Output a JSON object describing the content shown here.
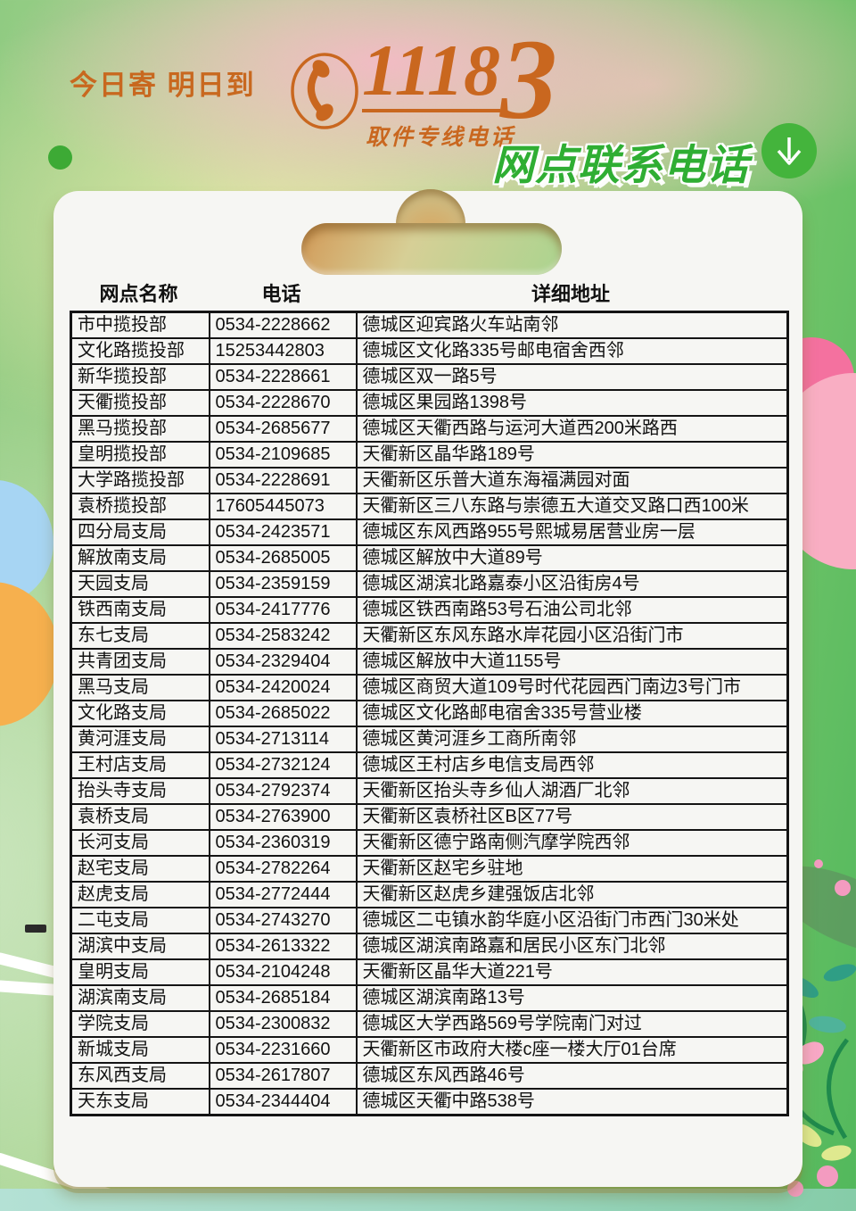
{
  "header": {
    "slogan": "今日寄 明日到",
    "hotline_number": "11183",
    "hotline_prefix": "1118",
    "hotline_suffix": "3",
    "hotline_label": "取件专线电话",
    "page_title": "网点联系电话"
  },
  "icons": {
    "phone": "phone-handset-in-circle",
    "arrow": "down-arrow-in-green-circle"
  },
  "colors": {
    "accent_orange": "#c9671f",
    "title_green": "#2fae33",
    "arrow_badge_green": "#44b43c",
    "card_background": "#f6f6f3",
    "table_border": "#141414",
    "bottom_strip_teal": "#a2dac7"
  },
  "table": {
    "columns": [
      "网点名称",
      "电话",
      "详细地址"
    ],
    "rows": [
      [
        "市中揽投部",
        "0534-2228662",
        "德城区迎宾路火车站南邻"
      ],
      [
        "文化路揽投部",
        "15253442803",
        "德城区文化路335号邮电宿舍西邻"
      ],
      [
        "新华揽投部",
        "0534-2228661",
        "德城区双一路5号"
      ],
      [
        "天衢揽投部",
        "0534-2228670",
        "德城区果园路1398号"
      ],
      [
        "黑马揽投部",
        "0534-2685677",
        "德城区天衢西路与运河大道西200米路西"
      ],
      [
        "皇明揽投部",
        "0534-2109685",
        "天衢新区晶华路189号"
      ],
      [
        "大学路揽投部",
        "0534-2228691",
        "天衢新区乐普大道东海福满园对面"
      ],
      [
        "袁桥揽投部",
        "17605445073",
        "天衢新区三八东路与崇德五大道交叉路口西100米"
      ],
      [
        "四分局支局",
        "0534-2423571",
        "德城区东风西路955号熙城易居营业房一层"
      ],
      [
        "解放南支局",
        "0534-2685005",
        "德城区解放中大道89号"
      ],
      [
        "天园支局",
        "0534-2359159",
        "德城区湖滨北路嘉泰小区沿街房4号"
      ],
      [
        "铁西南支局",
        "0534-2417776",
        "德城区铁西南路53号石油公司北邻"
      ],
      [
        "东七支局",
        "0534-2583242",
        "天衢新区东风东路水岸花园小区沿街门市"
      ],
      [
        "共青团支局",
        "0534-2329404",
        "德城区解放中大道1155号"
      ],
      [
        "黑马支局",
        "0534-2420024",
        "德城区商贸大道109号时代花园西门南边3号门市"
      ],
      [
        "文化路支局",
        "0534-2685022",
        "德城区文化路邮电宿舍335号营业楼"
      ],
      [
        "黄河涯支局",
        "0534-2713114",
        "德城区黄河涯乡工商所南邻"
      ],
      [
        "王村店支局",
        "0534-2732124",
        "德城区王村店乡电信支局西邻"
      ],
      [
        "抬头寺支局",
        "0534-2792374",
        "天衢新区抬头寺乡仙人湖酒厂北邻"
      ],
      [
        "袁桥支局",
        "0534-2763900",
        "天衢新区袁桥社区B区77号"
      ],
      [
        "长河支局",
        "0534-2360319",
        "天衢新区德宁路南侧汽摩学院西邻"
      ],
      [
        "赵宅支局",
        "0534-2782264",
        "天衢新区赵宅乡驻地"
      ],
      [
        "赵虎支局",
        "0534-2772444",
        "天衢新区赵虎乡建强饭店北邻"
      ],
      [
        "二屯支局",
        "0534-2743270",
        "德城区二屯镇水韵华庭小区沿街门市西门30米处"
      ],
      [
        "湖滨中支局",
        "0534-2613322",
        "德城区湖滨南路嘉和居民小区东门北邻"
      ],
      [
        "皇明支局",
        "0534-2104248",
        "天衢新区晶华大道221号"
      ],
      [
        "湖滨南支局",
        "0534-2685184",
        "德城区湖滨南路13号"
      ],
      [
        "学院支局",
        "0534-2300832",
        "德城区大学西路569号学院南门对过"
      ],
      [
        "新城支局",
        "0534-2231660",
        "天衢新区市政府大楼c座一楼大厅01台席"
      ],
      [
        "东风西支局",
        "0534-2617807",
        "德城区东风西路46号"
      ],
      [
        "天东支局",
        "0534-2344404",
        "德城区天衢中路538号"
      ]
    ]
  }
}
